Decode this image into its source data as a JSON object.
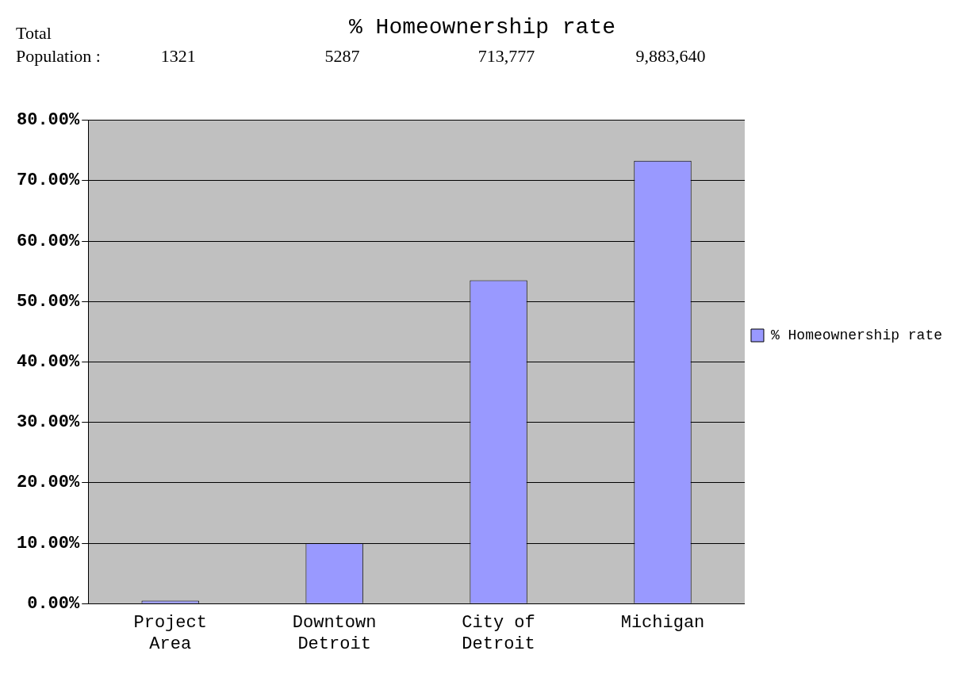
{
  "chart_data": {
    "type": "bar",
    "title": "% Homeownership rate",
    "categories": [
      "Project Area",
      "Downtown Detroit",
      "City of Detroit",
      "Michigan"
    ],
    "series": [
      {
        "name": "% Homeownership rate",
        "color": "#9999ff",
        "values": [
          0.5,
          10,
          53.5,
          73.3
        ]
      }
    ],
    "ylim": [
      0,
      80
    ],
    "yticks": [
      {
        "value": 0,
        "label": "0.00%"
      },
      {
        "value": 10,
        "label": "10.00%"
      },
      {
        "value": 20,
        "label": "20.00%"
      },
      {
        "value": 30,
        "label": "30.00%"
      },
      {
        "value": 40,
        "label": "40.00%"
      },
      {
        "value": 50,
        "label": "50.00%"
      },
      {
        "value": 60,
        "label": "60.00%"
      },
      {
        "value": 70,
        "label": "70.00%"
      },
      {
        "value": 80,
        "label": "80.00%"
      }
    ],
    "annotations": [
      "Total Population :",
      "1321",
      "5287",
      "713,777",
      "9,883,640"
    ],
    "grid": "y",
    "legend": "right"
  }
}
